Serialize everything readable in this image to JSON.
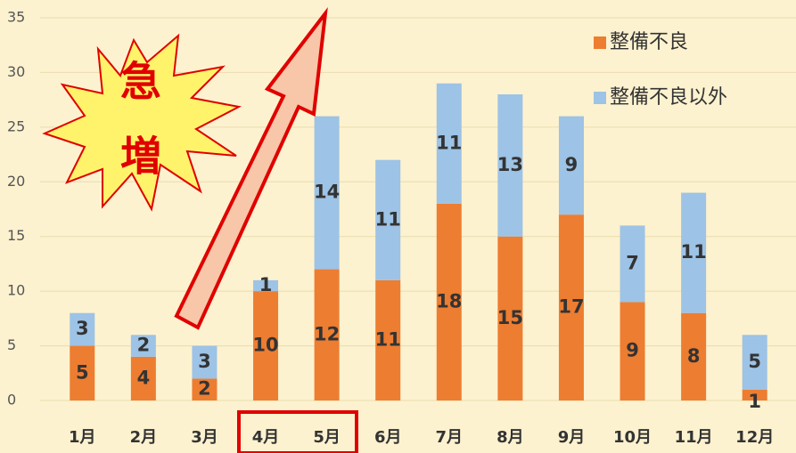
{
  "chart_data": {
    "type": "stacked-bar",
    "categories": [
      "1月",
      "2月",
      "3月",
      "4月",
      "5月",
      "6月",
      "7月",
      "8月",
      "9月",
      "10月",
      "11月",
      "12月"
    ],
    "series": [
      {
        "name": "整備不良",
        "color": "#ed7d31",
        "values": [
          5,
          4,
          2,
          10,
          12,
          11,
          18,
          15,
          17,
          9,
          8,
          1
        ]
      },
      {
        "name": "整備不良以外",
        "color": "#9dc3e6",
        "values": [
          3,
          2,
          3,
          1,
          14,
          11,
          11,
          13,
          9,
          7,
          11,
          5
        ]
      }
    ],
    "ylim": [
      0,
      35
    ],
    "yticks": [
      0,
      5,
      10,
      15,
      20,
      25,
      30,
      35
    ],
    "grid": true,
    "legend": "top-right",
    "annotations": [
      "急",
      "増"
    ]
  }
}
